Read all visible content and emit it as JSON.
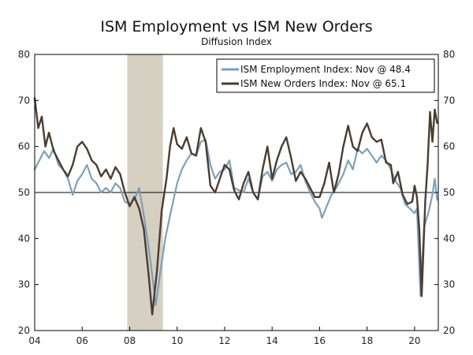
{
  "chart_data": {
    "type": "line",
    "title": "ISM Employment vs ISM New Orders",
    "subtitle": "Diffusion Index",
    "xlabel": "",
    "ylabel": "",
    "x_range": [
      2004.0,
      2021.0
    ],
    "ylim": [
      20,
      80
    ],
    "x_ticks": [
      {
        "value": 2004,
        "label": "04"
      },
      {
        "value": 2006,
        "label": "06"
      },
      {
        "value": 2008,
        "label": "08"
      },
      {
        "value": 2010,
        "label": "10"
      },
      {
        "value": 2012,
        "label": "12"
      },
      {
        "value": 2014,
        "label": "14"
      },
      {
        "value": 2016,
        "label": "16"
      },
      {
        "value": 2018,
        "label": "18"
      },
      {
        "value": 2020,
        "label": "20"
      }
    ],
    "y_ticks": [
      20,
      30,
      40,
      50,
      60,
      70,
      80
    ],
    "y_ticks_right": [
      20,
      30,
      40,
      50,
      60,
      70,
      80
    ],
    "reference_line": 50,
    "recession_shading": [
      2007.9,
      2009.4
    ],
    "grid": false,
    "legend_position": "top-right",
    "series": [
      {
        "name": "ISM Employment Index: Nov @ 48.4",
        "color": "#7f9fb8",
        "points": [
          [
            2004.0,
            55.0
          ],
          [
            2004.2,
            57.0
          ],
          [
            2004.4,
            59.0
          ],
          [
            2004.6,
            57.5
          ],
          [
            2004.8,
            59.5
          ],
          [
            2005.0,
            56.0
          ],
          [
            2005.2,
            55.0
          ],
          [
            2005.4,
            53.0
          ],
          [
            2005.6,
            49.5
          ],
          [
            2005.8,
            52.5
          ],
          [
            2006.0,
            54.0
          ],
          [
            2006.2,
            56.0
          ],
          [
            2006.4,
            53.0
          ],
          [
            2006.6,
            52.0
          ],
          [
            2006.8,
            50.0
          ],
          [
            2007.0,
            51.0
          ],
          [
            2007.2,
            50.0
          ],
          [
            2007.4,
            52.0
          ],
          [
            2007.6,
            51.0
          ],
          [
            2007.8,
            48.0
          ],
          [
            2008.0,
            47.5
          ],
          [
            2008.2,
            48.5
          ],
          [
            2008.4,
            51.0
          ],
          [
            2008.6,
            45.0
          ],
          [
            2008.8,
            38.0
          ],
          [
            2009.0,
            30.0
          ],
          [
            2009.1,
            25.5
          ],
          [
            2009.3,
            33.0
          ],
          [
            2009.5,
            40.0
          ],
          [
            2009.7,
            45.0
          ],
          [
            2010.0,
            52.0
          ],
          [
            2010.2,
            55.0
          ],
          [
            2010.4,
            57.0
          ],
          [
            2010.6,
            58.5
          ],
          [
            2010.8,
            58.0
          ],
          [
            2011.0,
            61.0
          ],
          [
            2011.2,
            61.5
          ],
          [
            2011.4,
            56.0
          ],
          [
            2011.6,
            53.0
          ],
          [
            2011.8,
            54.5
          ],
          [
            2012.0,
            55.0
          ],
          [
            2012.2,
            57.0
          ],
          [
            2012.4,
            51.0
          ],
          [
            2012.6,
            50.5
          ],
          [
            2012.8,
            50.0
          ],
          [
            2013.0,
            53.0
          ],
          [
            2013.2,
            50.0
          ],
          [
            2013.4,
            48.5
          ],
          [
            2013.6,
            53.5
          ],
          [
            2013.8,
            54.5
          ],
          [
            2014.0,
            52.5
          ],
          [
            2014.2,
            55.0
          ],
          [
            2014.4,
            56.0
          ],
          [
            2014.6,
            56.5
          ],
          [
            2014.8,
            54.0
          ],
          [
            2015.0,
            54.5
          ],
          [
            2015.2,
            56.0
          ],
          [
            2015.4,
            52.5
          ],
          [
            2015.6,
            50.0
          ],
          [
            2015.8,
            48.0
          ],
          [
            2016.0,
            46.5
          ],
          [
            2016.1,
            44.5
          ],
          [
            2016.3,
            47.0
          ],
          [
            2016.5,
            49.5
          ],
          [
            2016.7,
            51.0
          ],
          [
            2017.0,
            54.0
          ],
          [
            2017.2,
            57.0
          ],
          [
            2017.4,
            55.0
          ],
          [
            2017.6,
            59.5
          ],
          [
            2017.8,
            58.5
          ],
          [
            2018.0,
            59.5
          ],
          [
            2018.2,
            58.0
          ],
          [
            2018.4,
            56.5
          ],
          [
            2018.6,
            58.0
          ],
          [
            2018.8,
            57.0
          ],
          [
            2019.0,
            55.0
          ],
          [
            2019.2,
            52.5
          ],
          [
            2019.4,
            51.0
          ],
          [
            2019.6,
            47.5
          ],
          [
            2019.8,
            46.5
          ],
          [
            2020.0,
            45.5
          ],
          [
            2020.1,
            46.5
          ],
          [
            2020.25,
            27.5
          ],
          [
            2020.4,
            42.5
          ],
          [
            2020.6,
            46.0
          ],
          [
            2020.75,
            49.5
          ],
          [
            2020.85,
            53.0
          ],
          [
            2020.95,
            48.4
          ]
        ]
      },
      {
        "name": "ISM New Orders Index: Nov @ 65.1",
        "color": "#4a3c30",
        "points": [
          [
            2004.0,
            70.5
          ],
          [
            2004.15,
            64.0
          ],
          [
            2004.3,
            66.5
          ],
          [
            2004.45,
            60.0
          ],
          [
            2004.6,
            63.0
          ],
          [
            2004.8,
            59.0
          ],
          [
            2005.0,
            57.0
          ],
          [
            2005.2,
            55.0
          ],
          [
            2005.4,
            53.5
          ],
          [
            2005.6,
            56.0
          ],
          [
            2005.8,
            60.0
          ],
          [
            2006.0,
            61.0
          ],
          [
            2006.2,
            59.5
          ],
          [
            2006.4,
            57.0
          ],
          [
            2006.6,
            56.0
          ],
          [
            2006.8,
            53.5
          ],
          [
            2007.0,
            55.0
          ],
          [
            2007.2,
            53.0
          ],
          [
            2007.4,
            55.5
          ],
          [
            2007.6,
            54.0
          ],
          [
            2007.8,
            50.0
          ],
          [
            2008.0,
            47.0
          ],
          [
            2008.2,
            49.0
          ],
          [
            2008.4,
            46.5
          ],
          [
            2008.6,
            42.0
          ],
          [
            2008.8,
            32.0
          ],
          [
            2008.95,
            23.5
          ],
          [
            2009.15,
            33.0
          ],
          [
            2009.35,
            46.0
          ],
          [
            2009.55,
            53.0
          ],
          [
            2009.7,
            60.0
          ],
          [
            2009.85,
            64.0
          ],
          [
            2010.0,
            60.5
          ],
          [
            2010.2,
            59.5
          ],
          [
            2010.4,
            62.0
          ],
          [
            2010.6,
            58.5
          ],
          [
            2010.8,
            58.0
          ],
          [
            2011.0,
            64.0
          ],
          [
            2011.2,
            61.0
          ],
          [
            2011.4,
            51.5
          ],
          [
            2011.6,
            50.0
          ],
          [
            2011.8,
            53.0
          ],
          [
            2012.0,
            56.0
          ],
          [
            2012.2,
            55.0
          ],
          [
            2012.4,
            50.5
          ],
          [
            2012.6,
            48.5
          ],
          [
            2012.8,
            52.0
          ],
          [
            2013.0,
            54.5
          ],
          [
            2013.2,
            50.0
          ],
          [
            2013.4,
            48.5
          ],
          [
            2013.6,
            55.0
          ],
          [
            2013.8,
            60.0
          ],
          [
            2014.0,
            53.0
          ],
          [
            2014.2,
            57.0
          ],
          [
            2014.4,
            60.0
          ],
          [
            2014.6,
            62.0
          ],
          [
            2014.8,
            57.5
          ],
          [
            2015.0,
            52.5
          ],
          [
            2015.2,
            54.5
          ],
          [
            2015.4,
            53.0
          ],
          [
            2015.6,
            51.0
          ],
          [
            2015.8,
            49.0
          ],
          [
            2016.0,
            49.0
          ],
          [
            2016.2,
            52.0
          ],
          [
            2016.4,
            56.5
          ],
          [
            2016.6,
            50.0
          ],
          [
            2016.8,
            54.0
          ],
          [
            2017.0,
            60.0
          ],
          [
            2017.2,
            64.5
          ],
          [
            2017.4,
            60.0
          ],
          [
            2017.6,
            59.0
          ],
          [
            2017.8,
            63.0
          ],
          [
            2018.0,
            65.0
          ],
          [
            2018.2,
            62.0
          ],
          [
            2018.4,
            61.0
          ],
          [
            2018.6,
            61.5
          ],
          [
            2018.8,
            56.5
          ],
          [
            2019.0,
            56.0
          ],
          [
            2019.1,
            52.0
          ],
          [
            2019.3,
            54.5
          ],
          [
            2019.5,
            49.5
          ],
          [
            2019.7,
            47.5
          ],
          [
            2019.9,
            48.0
          ],
          [
            2020.0,
            51.5
          ],
          [
            2020.1,
            49.0
          ],
          [
            2020.2,
            42.0
          ],
          [
            2020.3,
            27.5
          ],
          [
            2020.45,
            48.0
          ],
          [
            2020.55,
            56.0
          ],
          [
            2020.65,
            67.5
          ],
          [
            2020.75,
            61.0
          ],
          [
            2020.85,
            68.0
          ],
          [
            2020.95,
            65.1
          ]
        ]
      }
    ]
  }
}
